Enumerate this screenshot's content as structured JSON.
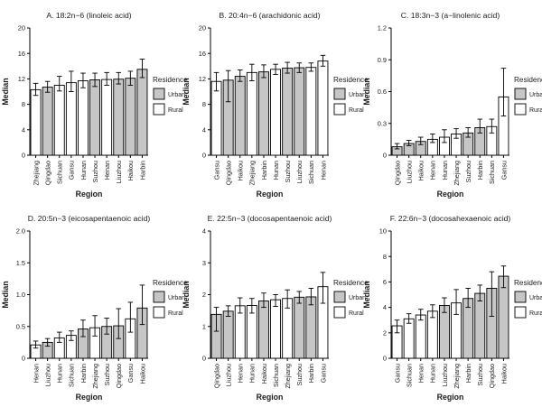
{
  "figure": {
    "y_axis_title": "Median",
    "x_axis_title": "Region",
    "legend": {
      "title": "Residence",
      "items": [
        {
          "label": "Urban",
          "fill": "#c6c6c6"
        },
        {
          "label": "Rural",
          "fill": "#ffffff"
        }
      ]
    },
    "colors": {
      "urban_fill": "#c6c6c6",
      "rural_fill": "#ffffff",
      "outline": "#000000",
      "text": "#1c1c1c",
      "background": "#ffffff"
    }
  },
  "chart_data": [
    {
      "id": "panel-a",
      "type": "bar",
      "title": "A. 18:2n−6 (linoleic acid)",
      "xlabel": "Region",
      "ylabel": "Median",
      "ylim": [
        0,
        20
      ],
      "yticks": [
        0,
        4,
        8,
        12,
        16,
        20
      ],
      "ytick_labels": [
        "0",
        "4",
        "8",
        "12",
        "16",
        "20"
      ],
      "categories": [
        "Zhejiang",
        "Qingdao",
        "Sichuan",
        "Gansu",
        "Hunan",
        "Suzhou",
        "Henan",
        "Liuzhou",
        "Haikou",
        "Harbin"
      ],
      "residence": [
        "Rural",
        "Urban",
        "Rural",
        "Rural",
        "Rural",
        "Urban",
        "Rural",
        "Urban",
        "Urban",
        "Urban"
      ],
      "values": [
        10.3,
        10.7,
        11.0,
        11.4,
        11.7,
        11.85,
        11.9,
        11.95,
        12.1,
        13.5
      ],
      "error_low": [
        9.4,
        9.9,
        10.1,
        10.0,
        10.6,
        10.8,
        11.0,
        11.2,
        11.0,
        12.2
      ],
      "error_high": [
        11.3,
        11.6,
        12.4,
        13.2,
        12.9,
        12.9,
        13.0,
        13.0,
        13.2,
        15.1
      ],
      "legend_position": "right",
      "grid": false
    },
    {
      "id": "panel-b",
      "type": "bar",
      "title": "B. 20:4n−6 (arachidonic acid)",
      "xlabel": "Region",
      "ylabel": "Median",
      "ylim": [
        0,
        20
      ],
      "yticks": [
        0,
        4,
        8,
        12,
        16,
        20
      ],
      "ytick_labels": [
        "0",
        "4",
        "8",
        "12",
        "16",
        "20"
      ],
      "categories": [
        "Gansu",
        "Qingdao",
        "Haikou",
        "Zhejiang",
        "Harbin",
        "Hunan",
        "Suzhou",
        "Liuzhou",
        "Sichuan",
        "Henan"
      ],
      "residence": [
        "Rural",
        "Urban",
        "Urban",
        "Rural",
        "Urban",
        "Rural",
        "Urban",
        "Urban",
        "Rural",
        "Rural"
      ],
      "values": [
        11.6,
        11.8,
        12.4,
        13.0,
        13.1,
        13.5,
        13.7,
        13.75,
        13.8,
        14.8
      ],
      "error_low": [
        10.1,
        8.4,
        11.6,
        11.7,
        12.2,
        12.7,
        12.9,
        13.0,
        13.2,
        14.0
      ],
      "error_high": [
        13.0,
        13.3,
        13.4,
        14.3,
        14.2,
        14.3,
        14.6,
        14.5,
        14.5,
        15.7
      ],
      "legend_position": "right",
      "grid": false
    },
    {
      "id": "panel-c",
      "type": "bar",
      "title": "C. 18:3n−3 (a−linolenic acid)",
      "xlabel": "Region",
      "ylabel": "Median",
      "ylim": [
        0,
        1.2
      ],
      "yticks": [
        0,
        0.3,
        0.6,
        0.9,
        1.2
      ],
      "ytick_labels": [
        "0",
        "0.3",
        "0.6",
        "0.9",
        "1.2"
      ],
      "categories": [
        "Qingdao",
        "Liuzhou",
        "Haikou",
        "Henan",
        "Hunan",
        "Zhejiang",
        "Suzhou",
        "Harbin",
        "Sichuan",
        "Gansu"
      ],
      "residence": [
        "Urban",
        "Urban",
        "Urban",
        "Rural",
        "Rural",
        "Rural",
        "Urban",
        "Urban",
        "Rural",
        "Rural"
      ],
      "values": [
        0.08,
        0.11,
        0.13,
        0.15,
        0.17,
        0.2,
        0.21,
        0.26,
        0.27,
        0.55
      ],
      "error_low": [
        0.06,
        0.09,
        0.1,
        0.12,
        0.12,
        0.16,
        0.17,
        0.21,
        0.21,
        0.37
      ],
      "error_high": [
        0.11,
        0.14,
        0.17,
        0.2,
        0.24,
        0.25,
        0.26,
        0.34,
        0.34,
        0.82
      ],
      "legend_position": "right",
      "grid": false
    },
    {
      "id": "panel-d",
      "type": "bar",
      "title": "D. 20:5n−3 (eicosapentaenoic acid)",
      "xlabel": "Region",
      "ylabel": "Median",
      "ylim": [
        0,
        2.0
      ],
      "yticks": [
        0,
        0.5,
        1.0,
        1.5,
        2.0
      ],
      "ytick_labels": [
        "0",
        "0.5",
        "1.0",
        "1.5",
        "2.0"
      ],
      "categories": [
        "Henan",
        "Liuzhou",
        "Hunan",
        "Sichuan",
        "Harbin",
        "Zhejiang",
        "Suzhou",
        "Qingdao",
        "Gansu",
        "Haikou"
      ],
      "residence": [
        "Rural",
        "Urban",
        "Rural",
        "Rural",
        "Urban",
        "Rural",
        "Urban",
        "Urban",
        "Rural",
        "Urban"
      ],
      "values": [
        0.21,
        0.25,
        0.32,
        0.36,
        0.46,
        0.48,
        0.5,
        0.51,
        0.62,
        0.79
      ],
      "error_low": [
        0.16,
        0.19,
        0.25,
        0.28,
        0.34,
        0.35,
        0.38,
        0.31,
        0.41,
        0.53
      ],
      "error_high": [
        0.27,
        0.31,
        0.41,
        0.43,
        0.6,
        0.67,
        0.63,
        0.78,
        0.88,
        1.15
      ],
      "legend_position": "right",
      "grid": false
    },
    {
      "id": "panel-e",
      "type": "bar",
      "title": "E. 22:5n−3 (docosapentaenoic acid)",
      "xlabel": "Region",
      "ylabel": "Median",
      "ylim": [
        0,
        4
      ],
      "yticks": [
        0,
        1,
        2,
        3,
        4
      ],
      "ytick_labels": [
        "0",
        "1",
        "2",
        "3",
        "4"
      ],
      "categories": [
        "Qingdao",
        "Liuzhou",
        "Henan",
        "Hunan",
        "Haikou",
        "Sichuan",
        "Zhejiang",
        "Suzhou",
        "Harbin",
        "Gansu"
      ],
      "residence": [
        "Urban",
        "Urban",
        "Rural",
        "Rural",
        "Urban",
        "Rural",
        "Rural",
        "Urban",
        "Urban",
        "Rural"
      ],
      "values": [
        1.38,
        1.48,
        1.65,
        1.66,
        1.8,
        1.84,
        1.88,
        1.92,
        1.93,
        2.25
      ],
      "error_low": [
        0.85,
        1.32,
        1.42,
        1.42,
        1.6,
        1.63,
        1.58,
        1.73,
        1.68,
        1.73
      ],
      "error_high": [
        1.6,
        1.65,
        1.9,
        1.88,
        2.05,
        2.0,
        2.15,
        2.1,
        2.2,
        2.7
      ],
      "legend_position": "right",
      "grid": false
    },
    {
      "id": "panel-f",
      "type": "bar",
      "title": "F. 22:6n−3 (docosahexaenoic acid)",
      "xlabel": "Region",
      "ylabel": "Median",
      "ylim": [
        0,
        10
      ],
      "yticks": [
        0,
        2,
        4,
        6,
        8,
        10
      ],
      "ytick_labels": [
        "0",
        "2",
        "4",
        "6",
        "8",
        "10"
      ],
      "categories": [
        "Gansu",
        "Sichuan",
        "Henan",
        "Hunan",
        "Liuzhou",
        "Zhejiang",
        "Harbin",
        "Suzhou",
        "Qingdao",
        "Haikou"
      ],
      "residence": [
        "Rural",
        "Rural",
        "Rural",
        "Rural",
        "Urban",
        "Rural",
        "Urban",
        "Urban",
        "Urban",
        "Urban"
      ],
      "values": [
        2.55,
        3.1,
        3.4,
        3.7,
        4.15,
        4.35,
        4.7,
        5.1,
        5.5,
        6.45
      ],
      "error_low": [
        2.0,
        2.75,
        3.0,
        3.2,
        3.6,
        3.45,
        4.0,
        4.5,
        3.3,
        5.55
      ],
      "error_high": [
        3.0,
        3.5,
        3.85,
        4.2,
        4.75,
        5.4,
        5.5,
        5.75,
        6.8,
        7.25
      ],
      "legend_position": "right",
      "grid": false
    }
  ]
}
